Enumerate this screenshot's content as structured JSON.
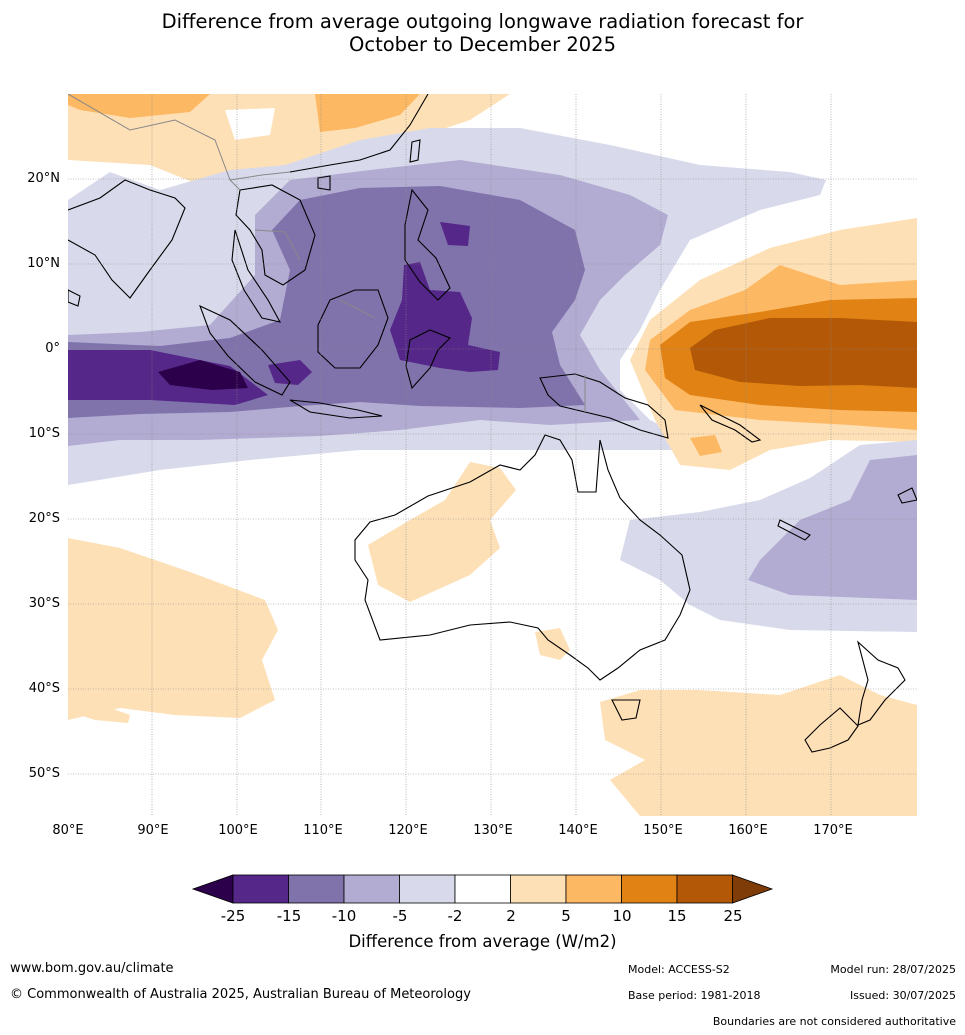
{
  "title": {
    "line1": "Difference from average outgoing longwave radiation forecast for",
    "line2": "October to December 2025"
  },
  "map": {
    "lat_labels": [
      "20°N",
      "10°N",
      "0°",
      "10°S",
      "20°S",
      "30°S",
      "40°S",
      "50°S"
    ],
    "lon_labels": [
      "80°E",
      "90°E",
      "100°E",
      "110°E",
      "120°E",
      "130°E",
      "140°E",
      "150°E",
      "160°E",
      "170°E"
    ],
    "colors": {
      "cat_n25": "#2d004b",
      "cat_n15": "#542788",
      "cat_n10": "#8073ac",
      "cat_n5": "#b2abd2",
      "cat_n2": "#d8daeb",
      "cat_0": "#ffffff",
      "cat_p2": "#fee0b6",
      "cat_p5": "#fdb863",
      "cat_p10": "#e08214",
      "cat_p15": "#b35806",
      "cat_p25": "#7f3b08"
    }
  },
  "colorbar": {
    "ticks": [
      "-25",
      "-15",
      "-10",
      "-5",
      "-2",
      "2",
      "5",
      "10",
      "15",
      "25"
    ],
    "label": "Difference from average (W/m2)"
  },
  "footer": {
    "website": "www.bom.gov.au/climate",
    "copyright": "© Commonwealth of Australia 2025, Australian Bureau of Meteorology",
    "model": "Model: ACCESS-S2",
    "base_period": "Base period: 1981-2018",
    "model_run": "Model run: 28/07/2025",
    "issued": "Issued: 30/07/2025",
    "disclaimer": "Boundaries are not considered authoritative"
  }
}
